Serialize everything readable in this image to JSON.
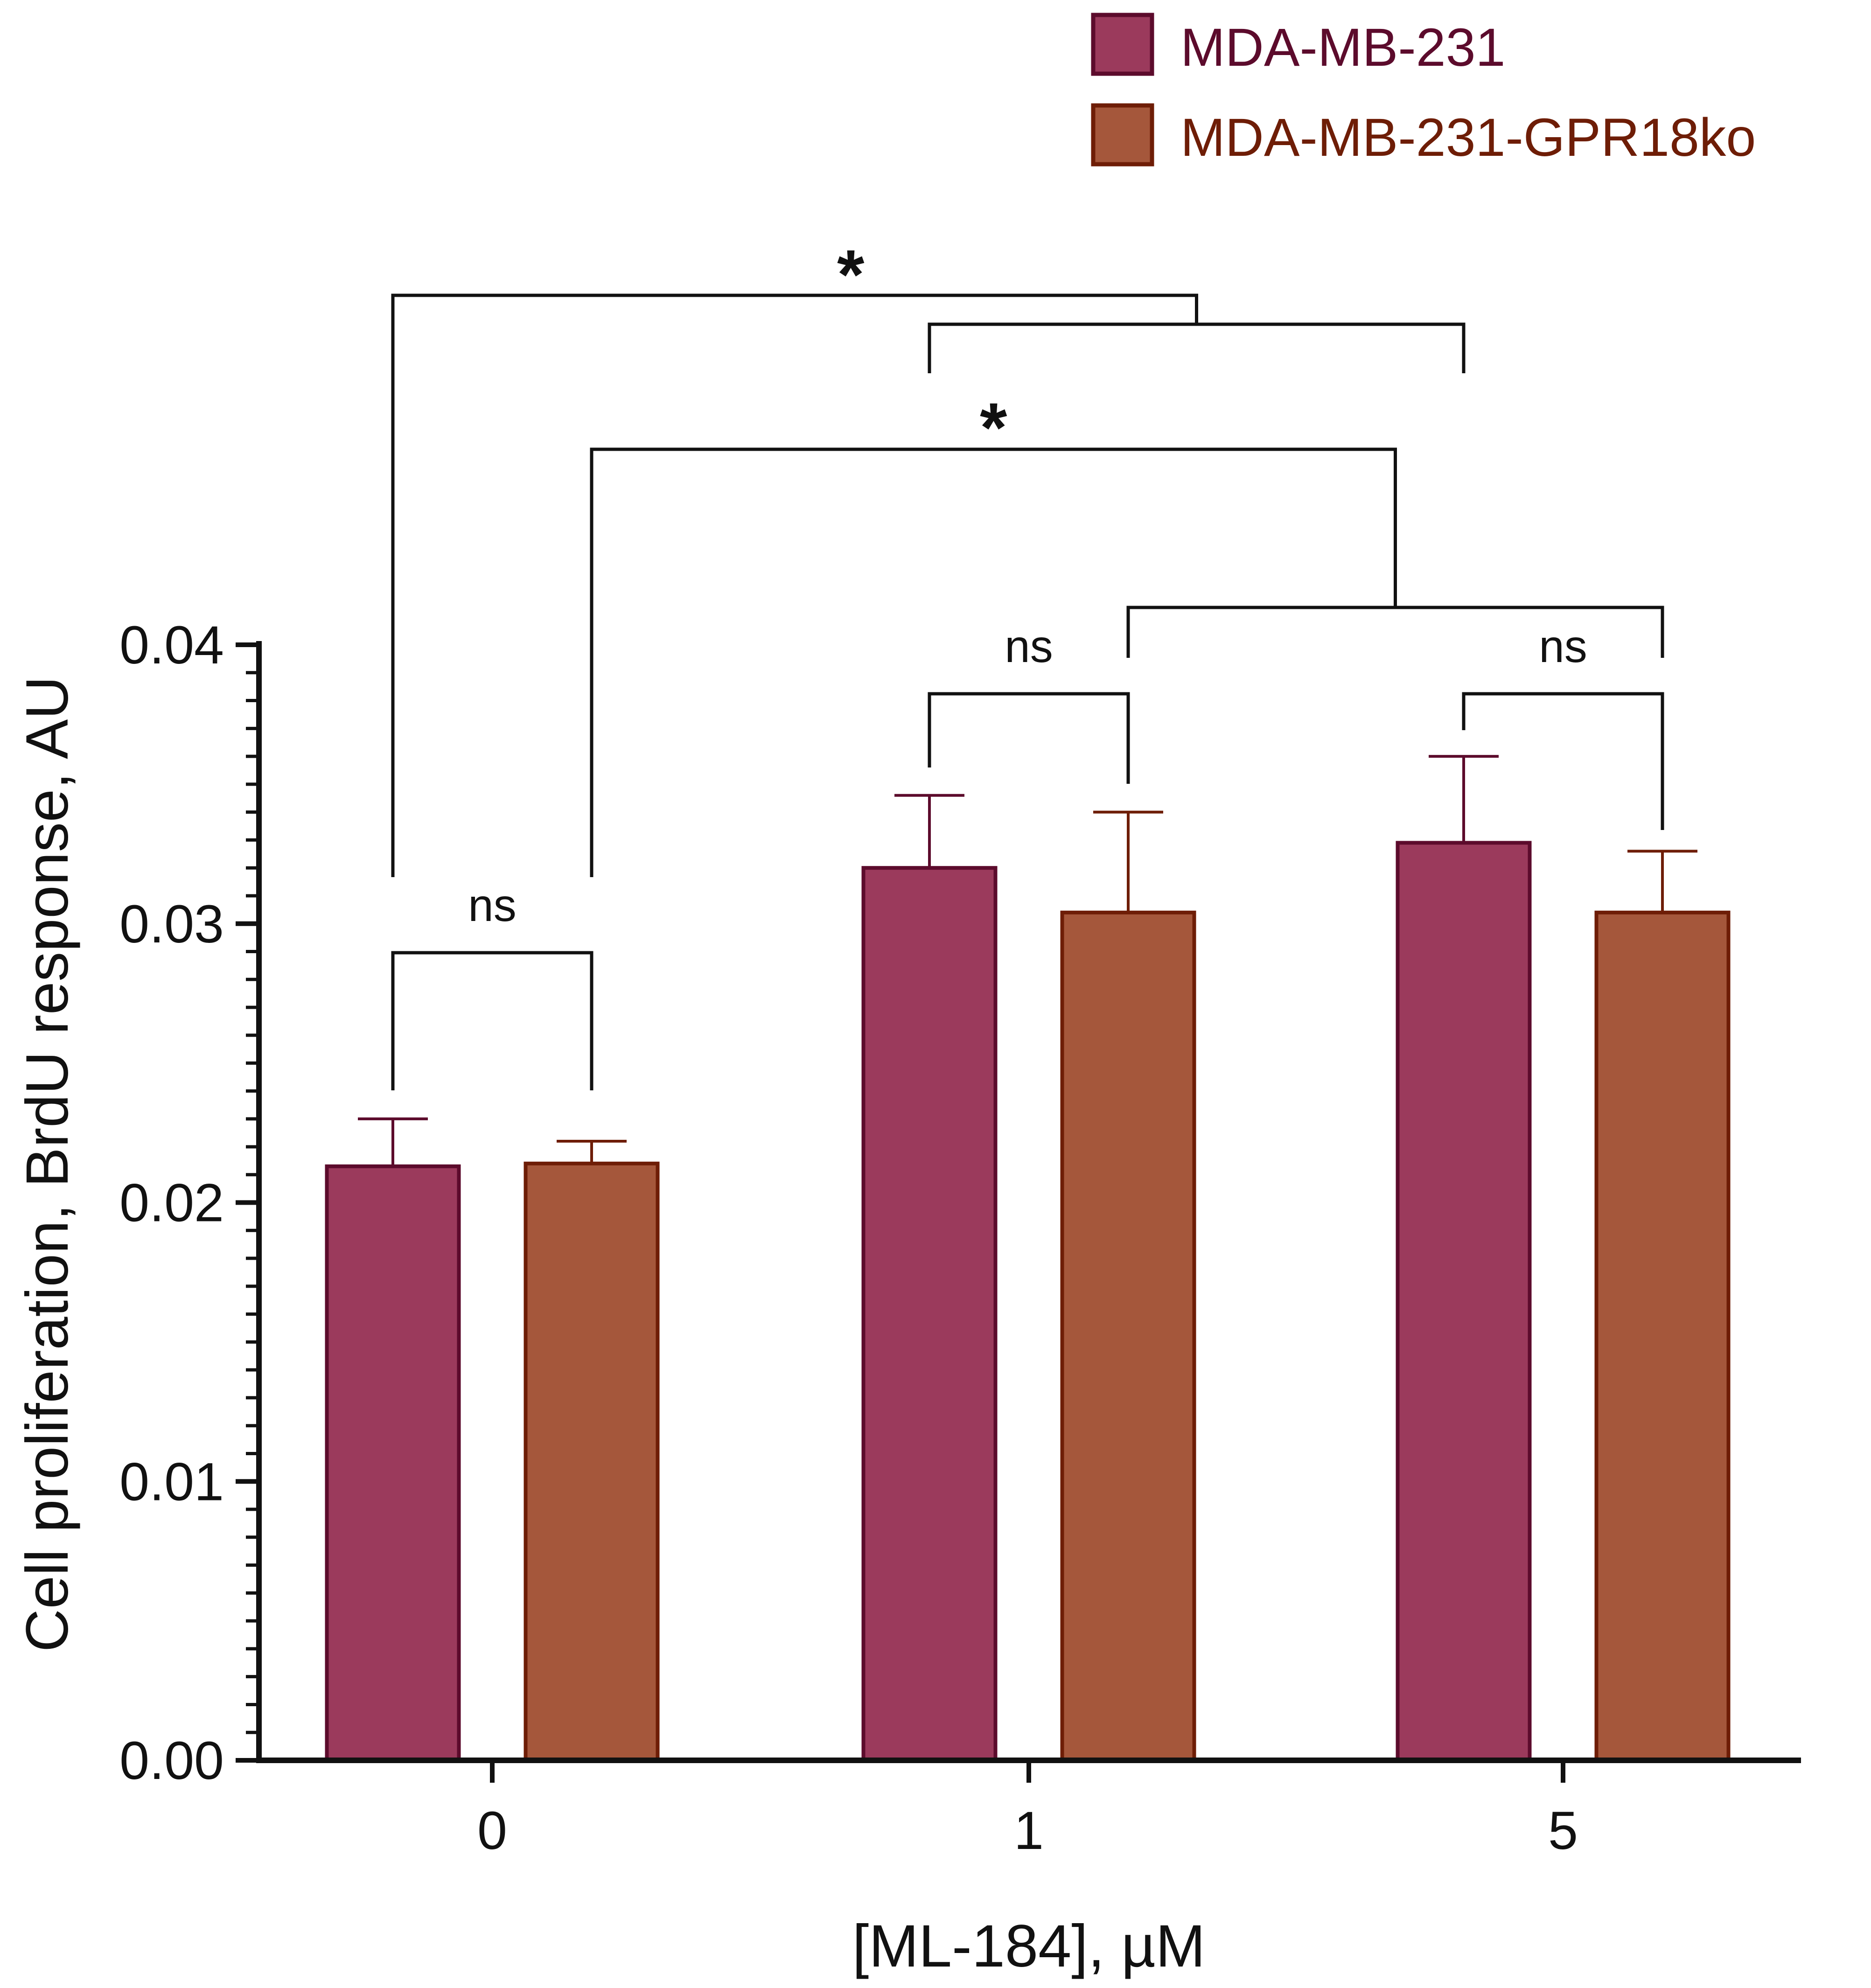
{
  "chart_data": {
    "type": "bar",
    "title": "",
    "xlabel": "[ML-184], µM",
    "ylabel": "Cell proliferation, BrdU response, AU",
    "categories": [
      "0",
      "1",
      "5"
    ],
    "ylim": [
      0,
      0.04
    ],
    "yticks": [
      "0.00",
      "0.01",
      "0.02",
      "0.03",
      "0.04"
    ],
    "legend_position": "top-right",
    "series": [
      {
        "name": "MDA-MB-231",
        "color": "#9b3a5c",
        "edge": "#5c0b2c",
        "text_color": "#5c0b2c",
        "values": [
          0.0213,
          0.032,
          0.0329
        ],
        "errors": [
          0.0017,
          0.0026,
          0.0031
        ]
      },
      {
        "name": "MDA-MB-231-GPR18ko",
        "color": "#a5573b",
        "edge": "#6e1d06",
        "text_color": "#6e1d06",
        "values": [
          0.0214,
          0.0304,
          0.0304
        ],
        "errors": [
          0.0008,
          0.0036,
          0.0022
        ]
      }
    ],
    "annotations": {
      "ns_label": "ns",
      "star_label": "*",
      "pair_ns": [
        {
          "category": 0,
          "label": "ns"
        },
        {
          "category": 1,
          "label": "ns"
        },
        {
          "category": 2,
          "label": "ns"
        }
      ],
      "group_compare": [
        {
          "label": "*",
          "from": "category 0 / MDA-MB-231",
          "to": "categories 1 & 5 / MDA-MB-231"
        },
        {
          "label": "*",
          "from": "category 0 / MDA-MB-231-GPR18ko",
          "to": "categories 1 & 5 / MDA-MB-231-GPR18ko"
        }
      ]
    }
  }
}
